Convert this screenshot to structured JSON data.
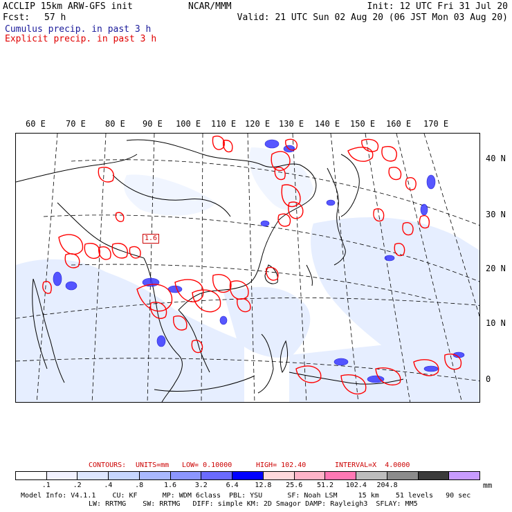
{
  "header": {
    "title": "ACCLIP 15km ARW-GFS init",
    "fcst_label": "Fcst:",
    "fcst_value": "57 h",
    "center": "NCAR/MMM",
    "init": "Init: 12 UTC Fri 31 Jul 20",
    "valid": "Valid: 21 UTC Sun 02 Aug 20 (06 JST Mon 03 Aug 20)",
    "legend_cumulus": "Cumulus precip. in past 3 h",
    "legend_explicit": "Explicit precip. in past 3 h"
  },
  "colors": {
    "cumulus": "#1a1aff",
    "explicit": "#ff0000",
    "contours_text": "#cc0000"
  },
  "map": {
    "lon_labels": [
      "60 E",
      "70 E",
      "80 E",
      "90 E",
      "100 E",
      "110 E",
      "120 E",
      "130 E",
      "140 E",
      "150 E",
      "160 E",
      "170 E"
    ],
    "lat_labels": [
      "40 N",
      "30 N",
      "20 N",
      "10 N",
      "0"
    ],
    "annotation": "1.6"
  },
  "contours": {
    "label": "CONTOURS:",
    "units": "UNITS=mm",
    "low": "LOW= 0.10000",
    "high": "HIGH= 102.40",
    "interval": "INTERVAL=X  4.0000"
  },
  "colorbar": {
    "colors": [
      "#ffffff",
      "#f2f2ff",
      "#dde6ff",
      "#c6d6ff",
      "#a9b8ff",
      "#8c96ff",
      "#6b6bff",
      "#0000ff",
      "#ffd9dc",
      "#ffb4c8",
      "#ff78b4",
      "#bdbdbd",
      "#8c8c8c",
      "#3a3a3a",
      "#c89bff"
    ],
    "labels": [
      ".1",
      ".2",
      ".4",
      ".8",
      "1.6",
      "3.2",
      "6.4",
      "12.8",
      "25.6",
      "51.2",
      "102.4",
      "204.8"
    ],
    "unit": "mm"
  },
  "model_info": {
    "line1": "Model Info: V4.1.1    CU: KF      MP: WDM 6class  PBL: YSU      SF: Noah LSM     15 km    51 levels   90 sec",
    "line2": "LW: RRTMG    SW: RRTMG   DIFF: simple KM: 2D Smagor DAMP: Rayleigh3  SFLAY: MM5"
  }
}
